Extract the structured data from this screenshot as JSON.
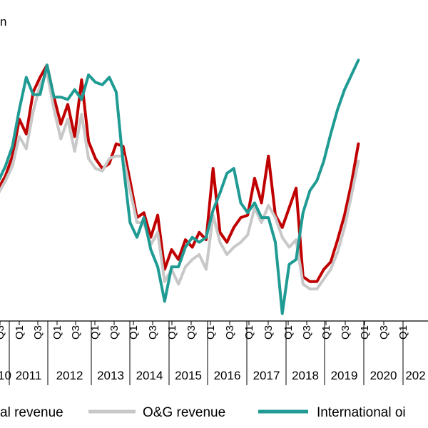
{
  "chart_data": {
    "type": "line",
    "title": "",
    "unit_label": "n",
    "xlabel": "",
    "ylabel": "",
    "grid": false,
    "legend_position": "bottom",
    "years": [
      {
        "label": "10",
        "quarters": [
          "Q3"
        ]
      },
      {
        "label": "2011",
        "quarters": [
          "Q1",
          "Q3"
        ]
      },
      {
        "label": "2012",
        "quarters": [
          "Q1",
          "Q3"
        ]
      },
      {
        "label": "2013",
        "quarters": [
          "Q1",
          "Q3"
        ]
      },
      {
        "label": "2014",
        "quarters": [
          "Q1",
          "Q3"
        ]
      },
      {
        "label": "2015",
        "quarters": [
          "Q1",
          "Q3"
        ]
      },
      {
        "label": "2016",
        "quarters": [
          "Q1",
          "Q3"
        ]
      },
      {
        "label": "2017",
        "quarters": [
          "Q1",
          "Q3"
        ]
      },
      {
        "label": "2018",
        "quarters": [
          "Q1",
          "Q3"
        ]
      },
      {
        "label": "2019",
        "quarters": [
          "Q1",
          "Q3"
        ]
      },
      {
        "label": "2020",
        "quarters": [
          "Q1",
          "Q3"
        ]
      },
      {
        "label": "202",
        "quarters": [
          "Q1"
        ]
      }
    ],
    "ylim": [
      0,
      100
    ],
    "series": [
      {
        "name": "al revenue",
        "color": "#c00000",
        "values": [
          54,
          59,
          67,
          82,
          76,
          93,
          99,
          104,
          91,
          80,
          88,
          75,
          98,
          73,
          66,
          62,
          64,
          72,
          71,
          57,
          42,
          44,
          34,
          43,
          21,
          29,
          25,
          33,
          30,
          36,
          33,
          62,
          36,
          32,
          38,
          42,
          43,
          58,
          48,
          67,
          43,
          38,
          46,
          54,
          18,
          16,
          16,
          21,
          24,
          33,
          43,
          56,
          72
        ]
      },
      {
        "name": "O&G revenue",
        "color": "#c8c8c8",
        "values": [
          52,
          57,
          63,
          75,
          70,
          85,
          96,
          101,
          86,
          74,
          82,
          69,
          84,
          66,
          62,
          61,
          66,
          67,
          67,
          53,
          40,
          40,
          31,
          36,
          16,
          21,
          15,
          22,
          25,
          27,
          21,
          43,
          32,
          27,
          30,
          32,
          35,
          46,
          40,
          47,
          42,
          34,
          30,
          33,
          15,
          13,
          13,
          17,
          21,
          28,
          38,
          51,
          65
        ]
      },
      {
        "name": "International oi",
        "color": "#1f9b94",
        "values": [
          57,
          63,
          71,
          86,
          99,
          92,
          92,
          104,
          91,
          91,
          90,
          94,
          90,
          100,
          97,
          96,
          99,
          93,
          64,
          40,
          34,
          42,
          29,
          22,
          8,
          22,
          22,
          30,
          34,
          32,
          34,
          45,
          52,
          60,
          62,
          48,
          44,
          48,
          42,
          42,
          32,
          3,
          23,
          25,
          44,
          53,
          57,
          65,
          76,
          86,
          94,
          100,
          106
        ]
      }
    ]
  }
}
